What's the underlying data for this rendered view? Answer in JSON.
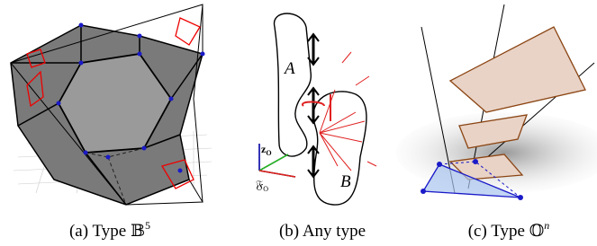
{
  "panel_b": {
    "region_labels": [
      "A",
      "B"
    ],
    "frame_labels": [
      {
        "text": "z",
        "sub": "O"
      },
      {
        "text": "𝔉",
        "sub": "O"
      }
    ]
  },
  "captions": [
    {
      "label": "(a) Type",
      "symbol": "𝔹",
      "sup": "5"
    },
    {
      "label": "(b) Any type"
    },
    {
      "label": "(c) Type",
      "symbol": "𝕆",
      "sup": "n"
    }
  ]
}
